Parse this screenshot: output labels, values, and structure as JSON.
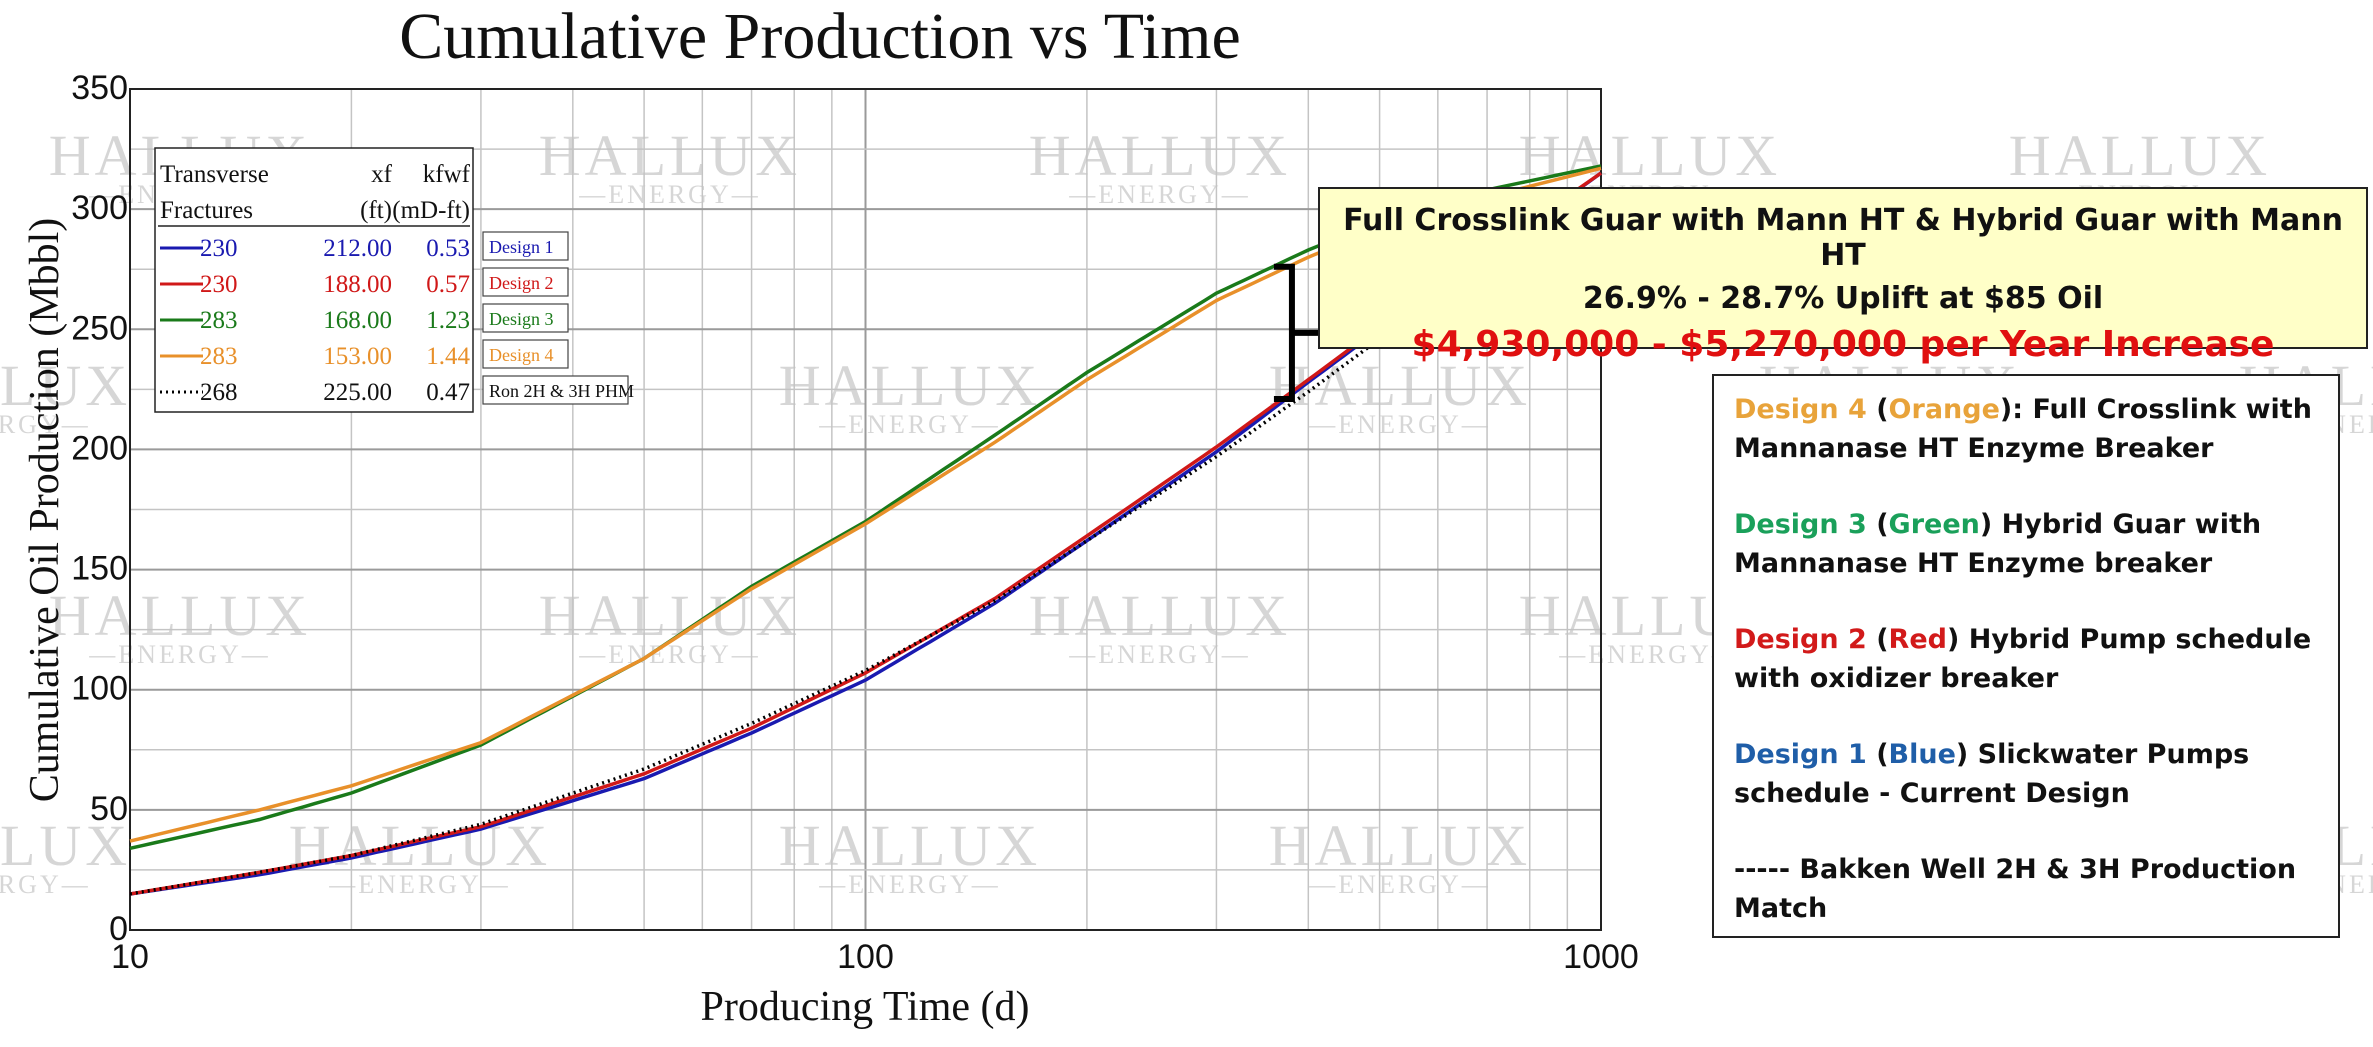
{
  "chart_data": {
    "type": "line",
    "title": "Cumulative Production vs Time",
    "xlabel": "Producing Time (d)",
    "ylabel": "Cumulative Oil Production (Mbbl)",
    "x_scale": "log",
    "xlim": [
      10,
      1000
    ],
    "ylim": [
      0,
      350
    ],
    "x_ticks": [
      "10",
      "100",
      "1000"
    ],
    "y_ticks": [
      "0",
      "50",
      "100",
      "150",
      "200",
      "250",
      "300",
      "350"
    ],
    "grid": true,
    "watermark": {
      "word": "HALLUX",
      "sub": "ENERGY"
    },
    "series": [
      {
        "name": "Design 1",
        "color": "#1a1ab0",
        "style": "solid",
        "x": [
          10,
          15,
          20,
          30,
          50,
          70,
          100,
          150,
          200,
          300,
          400,
          500,
          700,
          1000
        ],
        "y": [
          15,
          23,
          30,
          42,
          63,
          82,
          104,
          136,
          162,
          199,
          228,
          250,
          281,
          315
        ]
      },
      {
        "name": "Design 2",
        "color": "#d01818",
        "style": "solid",
        "x": [
          10,
          15,
          20,
          30,
          50,
          70,
          100,
          150,
          200,
          300,
          400,
          500,
          700,
          1000
        ],
        "y": [
          15,
          24,
          31,
          43,
          65,
          84,
          107,
          138,
          164,
          201,
          229,
          251,
          282,
          315
        ]
      },
      {
        "name": "Design 3",
        "color": "#1a7a1a",
        "style": "solid",
        "x": [
          10,
          15,
          20,
          30,
          50,
          70,
          100,
          150,
          200,
          300,
          400,
          500,
          700,
          1000
        ],
        "y": [
          34,
          46,
          57,
          77,
          113,
          143,
          170,
          206,
          232,
          265,
          283,
          295,
          308,
          318
        ]
      },
      {
        "name": "Design 4",
        "color": "#e8902a",
        "style": "solid",
        "x": [
          10,
          15,
          20,
          30,
          50,
          70,
          100,
          150,
          200,
          300,
          400,
          500,
          700,
          1000
        ],
        "y": [
          37,
          50,
          60,
          78,
          113,
          142,
          169,
          203,
          229,
          262,
          280,
          292,
          305,
          317
        ]
      },
      {
        "name": "Ron 2H & 3H PHM",
        "color": "#000000",
        "style": "dotted",
        "x": [
          10,
          15,
          20,
          30,
          50,
          70,
          100,
          150,
          200,
          300,
          400,
          500
        ],
        "y": [
          15,
          24,
          31,
          44,
          67,
          86,
          108,
          137,
          162,
          197,
          224,
          246
        ]
      }
    ],
    "legend_table": {
      "headers": [
        "Transverse",
        "xf",
        "kfwf"
      ],
      "headers2": [
        "Fractures",
        "(ft)",
        "(mD-ft)"
      ],
      "rows": [
        {
          "fractures": "230",
          "xf": "212.00",
          "kfwf": "0.53",
          "label": "Design 1",
          "color": "#1a1ab0",
          "style": "solid"
        },
        {
          "fractures": "230",
          "xf": "188.00",
          "kfwf": "0.57",
          "label": "Design 2",
          "color": "#d01818",
          "style": "solid"
        },
        {
          "fractures": "283",
          "xf": "168.00",
          "kfwf": "1.23",
          "label": "Design 3",
          "color": "#1a7a1a",
          "style": "solid"
        },
        {
          "fractures": "283",
          "xf": "153.00",
          "kfwf": "1.44",
          "label": "Design 4",
          "color": "#e8902a",
          "style": "solid"
        },
        {
          "fractures": "268",
          "xf": "225.00",
          "kfwf": "0.47",
          "label": "Ron 2H & 3H PHM",
          "color": "#000000",
          "style": "dotted"
        }
      ]
    },
    "bracket": {
      "x": 380,
      "y_top": 276,
      "y_bottom": 221
    }
  },
  "callout": {
    "line1": "Full Crosslink Guar with Mann HT & Hybrid Guar with Mann HT",
    "line2": "26.9% - 28.7% Uplift at $85 Oil",
    "line3": "$4,930,000 - $5,270,000 per Year Increase"
  },
  "descriptions": [
    {
      "name": "Design 4",
      "color_word": "Orange",
      "rest": ": Full Crosslink with Mannanase HT Enzyme Breaker",
      "colors": "#e8a33a"
    },
    {
      "name": "Design 3",
      "color_word": "Green",
      "rest": " Hybrid Guar with Mannanase HT Enzyme breaker",
      "colors": "#1aa05a"
    },
    {
      "name": "Design 2",
      "color_word": "Red",
      "rest": " Hybrid Pump schedule with oxidizer breaker",
      "colors": "#d21a1a"
    },
    {
      "name": "Design 1",
      "color_word": "Blue",
      "rest": " Slickwater Pumps schedule - Current Design",
      "colors": "#1f5ea8"
    }
  ],
  "match_line": "----- Bakken Well 2H & 3H Production Match"
}
